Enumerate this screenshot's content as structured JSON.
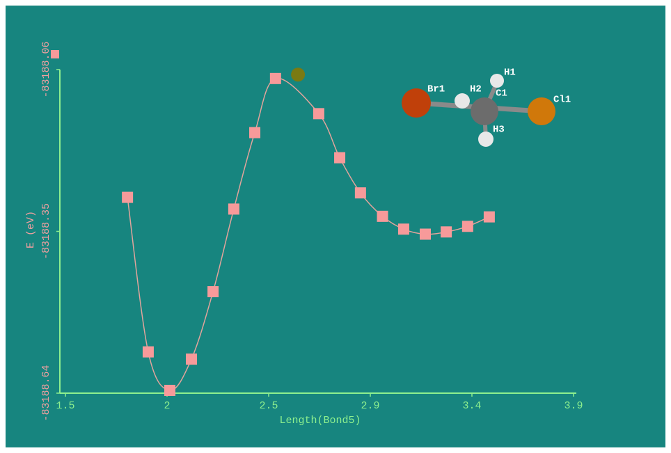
{
  "chart_data": {
    "type": "line",
    "x_label": "Length(Bond5)",
    "y_label": "E (eV)",
    "x": [
      1.79,
      1.887,
      1.988,
      2.089,
      2.19,
      2.287,
      2.385,
      2.482,
      2.684,
      2.782,
      2.879,
      2.982,
      3.081,
      3.182,
      3.28,
      3.38,
      3.481
    ],
    "values": [
      -83188.289,
      -83188.566,
      -83188.635,
      -83188.579,
      -83188.458,
      -83188.31,
      -83188.173,
      -83188.076,
      -83188.139,
      -83188.218,
      -83188.281,
      -83188.323,
      -83188.346,
      -83188.355,
      -83188.351,
      -83188.341,
      -83188.324
    ],
    "color": "#f79a9a",
    "line_color": "#e2a49c",
    "current_point": {
      "x": 2.587,
      "y": -83188.069,
      "color": "#7a7a12"
    },
    "xlim": [
      1.474,
      3.888
    ],
    "xticks": [
      {
        "value": 1.5,
        "label": "1.5"
      },
      {
        "value": 1.975,
        "label": "2"
      },
      {
        "value": 2.45,
        "label": "2.5"
      },
      {
        "value": 2.925,
        "label": "2.9"
      },
      {
        "value": 3.4,
        "label": "3.4"
      },
      {
        "value": 3.875,
        "label": "3.9"
      }
    ],
    "ylim": [
      -83188.64,
      -83188.06
    ],
    "yticks": [
      -83188.06,
      -83188.35,
      -83188.64
    ],
    "grid": false,
    "molecule_labels": [
      "Br1",
      "H2",
      "C1",
      "H1",
      "Cl1",
      "H3"
    ]
  }
}
